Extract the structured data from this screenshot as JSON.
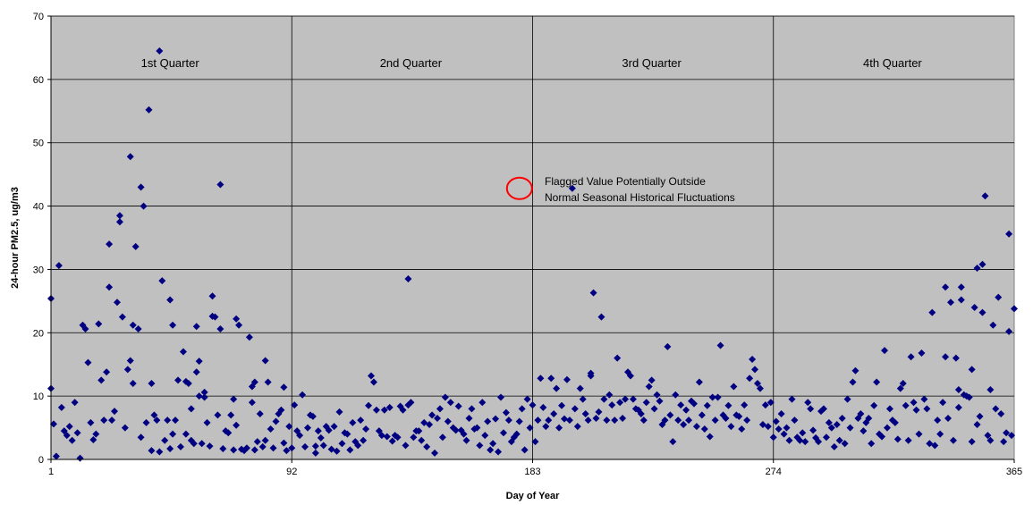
{
  "chart_data": {
    "type": "scatter",
    "title": "",
    "xlabel": "Day of Year",
    "ylabel": "24-hour PM2.5, ug/m3",
    "xlim": [
      1,
      365
    ],
    "ylim": [
      0,
      70
    ],
    "xticks": [
      "1",
      "92",
      "183",
      "274",
      "365"
    ],
    "xtick_values": [
      1,
      92,
      183,
      274,
      365
    ],
    "yticks": [
      "0",
      "10",
      "20",
      "30",
      "40",
      "50",
      "60",
      "70"
    ],
    "ytick_values": [
      0,
      10,
      20,
      30,
      40,
      50,
      60,
      70
    ],
    "grid": true,
    "plot_background": "#c0c0c0",
    "marker_color": "#000080",
    "marker": "diamond",
    "quarters": [
      {
        "label": "1st Quarter",
        "x": 46
      },
      {
        "label": "2nd Quarter",
        "x": 137
      },
      {
        "label": "3rd Quarter",
        "x": 228
      },
      {
        "label": "4th Quarter",
        "x": 319
      }
    ],
    "annotation": {
      "text_line1": "Flagged Value Potentially Outside",
      "text_line2": "Normal Seasonal Historical  Fluctuations",
      "x": 176,
      "y": 42.8,
      "circle_color": "#ff0000"
    },
    "points": [
      [
        1,
        25.4
      ],
      [
        1,
        11.2
      ],
      [
        2,
        5.6
      ],
      [
        3,
        0.5
      ],
      [
        4,
        30.6
      ],
      [
        5,
        8.2
      ],
      [
        6,
        4.5
      ],
      [
        7,
        3.8
      ],
      [
        8,
        5.2
      ],
      [
        9,
        3.0
      ],
      [
        10,
        9.0
      ],
      [
        11,
        4.2
      ],
      [
        12,
        0.2
      ],
      [
        13,
        21.2
      ],
      [
        14,
        20.6
      ],
      [
        15,
        15.3
      ],
      [
        16,
        5.8
      ],
      [
        17,
        3.1
      ],
      [
        18,
        4.0
      ],
      [
        19,
        21.4
      ],
      [
        20,
        12.5
      ],
      [
        21,
        6.2
      ],
      [
        22,
        13.8
      ],
      [
        23,
        27.2
      ],
      [
        23,
        34.0
      ],
      [
        24,
        6.2
      ],
      [
        25,
        7.6
      ],
      [
        26,
        24.8
      ],
      [
        27,
        38.5
      ],
      [
        27,
        37.5
      ],
      [
        28,
        22.5
      ],
      [
        29,
        5.0
      ],
      [
        30,
        14.2
      ],
      [
        31,
        47.8
      ],
      [
        31,
        15.6
      ],
      [
        32,
        21.2
      ],
      [
        32,
        12.0
      ],
      [
        33,
        33.6
      ],
      [
        34,
        20.6
      ],
      [
        35,
        43.0
      ],
      [
        35,
        3.5
      ],
      [
        36,
        40.0
      ],
      [
        37,
        5.8
      ],
      [
        38,
        55.2
      ],
      [
        39,
        1.4
      ],
      [
        39,
        12.0
      ],
      [
        40,
        7.0
      ],
      [
        41,
        6.2
      ],
      [
        42,
        64.5
      ],
      [
        42,
        1.2
      ],
      [
        43,
        28.2
      ],
      [
        44,
        3.0
      ],
      [
        45,
        6.2
      ],
      [
        46,
        25.2
      ],
      [
        46,
        1.7
      ],
      [
        47,
        21.2
      ],
      [
        47,
        4.0
      ],
      [
        48,
        6.2
      ],
      [
        49,
        12.5
      ],
      [
        50,
        2.0
      ],
      [
        51,
        17.0
      ],
      [
        52,
        12.3
      ],
      [
        52,
        4.0
      ],
      [
        53,
        12.0
      ],
      [
        54,
        8.0
      ],
      [
        54,
        3.0
      ],
      [
        55,
        2.5
      ],
      [
        56,
        21.0
      ],
      [
        56,
        13.8
      ],
      [
        57,
        15.5
      ],
      [
        57,
        10.0
      ],
      [
        58,
        2.5
      ],
      [
        59,
        10.6
      ],
      [
        59,
        9.8
      ],
      [
        60,
        5.8
      ],
      [
        61,
        2.1
      ],
      [
        62,
        25.8
      ],
      [
        62,
        22.6
      ],
      [
        63,
        22.5
      ],
      [
        64,
        7.0
      ],
      [
        65,
        20.6
      ],
      [
        65,
        43.4
      ],
      [
        66,
        1.7
      ],
      [
        67,
        4.5
      ],
      [
        68,
        4.2
      ],
      [
        69,
        7.0
      ],
      [
        70,
        9.5
      ],
      [
        70,
        1.5
      ],
      [
        71,
        22.2
      ],
      [
        71,
        5.4
      ],
      [
        72,
        21.2
      ],
      [
        73,
        1.6
      ],
      [
        74,
        1.4
      ],
      [
        75,
        1.8
      ],
      [
        76,
        19.3
      ],
      [
        77,
        9.0
      ],
      [
        77,
        11.5
      ],
      [
        78,
        12.2
      ],
      [
        78,
        1.5
      ],
      [
        79,
        2.8
      ],
      [
        80,
        7.2
      ],
      [
        81,
        2.0
      ],
      [
        82,
        15.6
      ],
      [
        82,
        3.0
      ],
      [
        83,
        12.2
      ],
      [
        84,
        4.8
      ],
      [
        85,
        1.8
      ],
      [
        86,
        6.0
      ],
      [
        87,
        7.2
      ],
      [
        88,
        7.8
      ],
      [
        89,
        2.6
      ],
      [
        89,
        11.4
      ],
      [
        90,
        1.4
      ],
      [
        91,
        5.2
      ],
      [
        92,
        1.8
      ],
      [
        93,
        8.6
      ],
      [
        94,
        4.5
      ],
      [
        95,
        3.8
      ],
      [
        96,
        10.2
      ],
      [
        97,
        2.0
      ],
      [
        98,
        5.0
      ],
      [
        99,
        7.0
      ],
      [
        100,
        6.8
      ],
      [
        101,
        2.1
      ],
      [
        101,
        1.0
      ],
      [
        102,
        4.5
      ],
      [
        103,
        3.4
      ],
      [
        104,
        2.2
      ],
      [
        105,
        5.2
      ],
      [
        106,
        4.6
      ],
      [
        107,
        1.6
      ],
      [
        108,
        5.2
      ],
      [
        109,
        1.3
      ],
      [
        110,
        7.5
      ],
      [
        111,
        2.5
      ],
      [
        112,
        4.2
      ],
      [
        113,
        4.0
      ],
      [
        114,
        1.5
      ],
      [
        115,
        5.8
      ],
      [
        116,
        2.8
      ],
      [
        117,
        2.2
      ],
      [
        118,
        6.2
      ],
      [
        119,
        3.0
      ],
      [
        120,
        4.8
      ],
      [
        121,
        8.5
      ],
      [
        122,
        13.2
      ],
      [
        123,
        12.2
      ],
      [
        124,
        7.8
      ],
      [
        125,
        4.5
      ],
      [
        126,
        3.8
      ],
      [
        127,
        7.8
      ],
      [
        128,
        3.6
      ],
      [
        129,
        8.2
      ],
      [
        130,
        2.9
      ],
      [
        131,
        3.8
      ],
      [
        132,
        3.5
      ],
      [
        133,
        8.4
      ],
      [
        134,
        7.8
      ],
      [
        135,
        2.2
      ],
      [
        136,
        28.5
      ],
      [
        136,
        8.6
      ],
      [
        137,
        9.0
      ],
      [
        138,
        3.5
      ],
      [
        139,
        4.5
      ],
      [
        140,
        4.5
      ],
      [
        141,
        3.0
      ],
      [
        142,
        5.8
      ],
      [
        143,
        2.0
      ],
      [
        144,
        5.5
      ],
      [
        145,
        7.0
      ],
      [
        146,
        1.0
      ],
      [
        147,
        6.5
      ],
      [
        148,
        8.0
      ],
      [
        149,
        3.5
      ],
      [
        150,
        9.8
      ],
      [
        151,
        6.0
      ],
      [
        152,
        9.0
      ],
      [
        153,
        5.0
      ],
      [
        154,
        4.6
      ],
      [
        155,
        8.4
      ],
      [
        156,
        4.6
      ],
      [
        157,
        4.0
      ],
      [
        158,
        3.0
      ],
      [
        159,
        6.5
      ],
      [
        160,
        8.0
      ],
      [
        161,
        4.8
      ],
      [
        162,
        5.0
      ],
      [
        163,
        2.2
      ],
      [
        164,
        9.0
      ],
      [
        165,
        3.8
      ],
      [
        166,
        6.0
      ],
      [
        167,
        1.5
      ],
      [
        168,
        2.5
      ],
      [
        169,
        6.4
      ],
      [
        170,
        1.2
      ],
      [
        171,
        9.8
      ],
      [
        172,
        4.2
      ],
      [
        173,
        7.4
      ],
      [
        174,
        6.2
      ],
      [
        175,
        2.8
      ],
      [
        176,
        3.5
      ],
      [
        177,
        4.0
      ],
      [
        178,
        6.0
      ],
      [
        179,
        8.0
      ],
      [
        180,
        1.5
      ],
      [
        181,
        9.5
      ],
      [
        182,
        5.0
      ],
      [
        183,
        8.6
      ],
      [
        184,
        2.8
      ],
      [
        185,
        6.2
      ],
      [
        186,
        12.8
      ],
      [
        187,
        8.2
      ],
      [
        188,
        5.2
      ],
      [
        189,
        6.2
      ],
      [
        190,
        12.8
      ],
      [
        191,
        7.2
      ],
      [
        192,
        11.2
      ],
      [
        193,
        5.0
      ],
      [
        194,
        8.5
      ],
      [
        195,
        6.4
      ],
      [
        196,
        12.6
      ],
      [
        197,
        6.2
      ],
      [
        198,
        42.8
      ],
      [
        199,
        8.0
      ],
      [
        200,
        5.2
      ],
      [
        201,
        11.2
      ],
      [
        202,
        9.5
      ],
      [
        203,
        7.2
      ],
      [
        204,
        6.2
      ],
      [
        205,
        13.6
      ],
      [
        205,
        13.2
      ],
      [
        206,
        26.3
      ],
      [
        207,
        6.5
      ],
      [
        208,
        7.5
      ],
      [
        209,
        22.5
      ],
      [
        210,
        9.5
      ],
      [
        211,
        6.2
      ],
      [
        212,
        10.2
      ],
      [
        213,
        8.6
      ],
      [
        214,
        6.2
      ],
      [
        215,
        16.0
      ],
      [
        216,
        9.0
      ],
      [
        217,
        6.5
      ],
      [
        218,
        9.5
      ],
      [
        219,
        13.8
      ],
      [
        220,
        13.2
      ],
      [
        221,
        9.5
      ],
      [
        222,
        8.0
      ],
      [
        223,
        7.8
      ],
      [
        224,
        7.2
      ],
      [
        225,
        6.2
      ],
      [
        226,
        9.0
      ],
      [
        227,
        11.5
      ],
      [
        228,
        12.5
      ],
      [
        229,
        8.0
      ],
      [
        230,
        10.2
      ],
      [
        231,
        9.2
      ],
      [
        232,
        5.5
      ],
      [
        233,
        6.2
      ],
      [
        234,
        17.8
      ],
      [
        235,
        7.0
      ],
      [
        236,
        2.8
      ],
      [
        237,
        10.2
      ],
      [
        238,
        6.2
      ],
      [
        239,
        8.6
      ],
      [
        240,
        5.5
      ],
      [
        241,
        7.8
      ],
      [
        242,
        6.2
      ],
      [
        243,
        9.2
      ],
      [
        244,
        8.8
      ],
      [
        245,
        5.2
      ],
      [
        246,
        12.2
      ],
      [
        247,
        7.0
      ],
      [
        248,
        4.8
      ],
      [
        249,
        8.5
      ],
      [
        250,
        3.6
      ],
      [
        251,
        9.8
      ],
      [
        252,
        6.2
      ],
      [
        253,
        9.8
      ],
      [
        254,
        18.0
      ],
      [
        255,
        7.0
      ],
      [
        256,
        6.5
      ],
      [
        257,
        8.5
      ],
      [
        258,
        5.2
      ],
      [
        259,
        11.5
      ],
      [
        260,
        7.0
      ],
      [
        261,
        6.8
      ],
      [
        262,
        4.8
      ],
      [
        263,
        8.6
      ],
      [
        264,
        6.2
      ],
      [
        265,
        12.8
      ],
      [
        266,
        15.8
      ],
      [
        267,
        14.2
      ],
      [
        268,
        12.0
      ],
      [
        269,
        11.2
      ],
      [
        270,
        5.5
      ],
      [
        271,
        8.6
      ],
      [
        272,
        5.2
      ],
      [
        273,
        9.0
      ],
      [
        274,
        3.5
      ],
      [
        275,
        6.0
      ],
      [
        276,
        4.8
      ],
      [
        277,
        7.2
      ],
      [
        278,
        4.0
      ],
      [
        279,
        5.0
      ],
      [
        280,
        3.0
      ],
      [
        281,
        9.5
      ],
      [
        282,
        6.2
      ],
      [
        283,
        3.5
      ],
      [
        284,
        3.0
      ],
      [
        285,
        4.2
      ],
      [
        286,
        2.8
      ],
      [
        287,
        9.0
      ],
      [
        288,
        8.0
      ],
      [
        289,
        4.6
      ],
      [
        290,
        3.4
      ],
      [
        291,
        2.8
      ],
      [
        292,
        7.6
      ],
      [
        293,
        8.0
      ],
      [
        294,
        3.5
      ],
      [
        295,
        5.8
      ],
      [
        296,
        5.0
      ],
      [
        297,
        2.0
      ],
      [
        298,
        5.5
      ],
      [
        299,
        3.0
      ],
      [
        300,
        6.5
      ],
      [
        301,
        2.5
      ],
      [
        302,
        9.5
      ],
      [
        303,
        5.0
      ],
      [
        304,
        12.2
      ],
      [
        305,
        14.0
      ],
      [
        306,
        6.5
      ],
      [
        307,
        7.2
      ],
      [
        308,
        4.5
      ],
      [
        309,
        5.8
      ],
      [
        310,
        6.5
      ],
      [
        311,
        2.5
      ],
      [
        312,
        8.5
      ],
      [
        313,
        12.2
      ],
      [
        314,
        4.0
      ],
      [
        315,
        3.6
      ],
      [
        316,
        17.2
      ],
      [
        317,
        5.0
      ],
      [
        318,
        8.0
      ],
      [
        319,
        6.2
      ],
      [
        320,
        5.8
      ],
      [
        321,
        3.2
      ],
      [
        322,
        11.2
      ],
      [
        323,
        12.0
      ],
      [
        324,
        8.5
      ],
      [
        325,
        3.0
      ],
      [
        326,
        16.2
      ],
      [
        327,
        9.0
      ],
      [
        328,
        7.8
      ],
      [
        329,
        4.0
      ],
      [
        330,
        16.8
      ],
      [
        331,
        9.5
      ],
      [
        332,
        8.0
      ],
      [
        333,
        2.5
      ],
      [
        334,
        23.2
      ],
      [
        335,
        2.2
      ],
      [
        336,
        6.2
      ],
      [
        337,
        4.0
      ],
      [
        338,
        9.0
      ],
      [
        339,
        27.2
      ],
      [
        339,
        16.2
      ],
      [
        340,
        6.5
      ],
      [
        341,
        24.8
      ],
      [
        342,
        3.0
      ],
      [
        343,
        16.0
      ],
      [
        344,
        11.0
      ],
      [
        344,
        8.2
      ],
      [
        345,
        27.2
      ],
      [
        345,
        25.2
      ],
      [
        346,
        10.2
      ],
      [
        347,
        10.0
      ],
      [
        348,
        9.8
      ],
      [
        349,
        14.2
      ],
      [
        349,
        2.8
      ],
      [
        350,
        24.0
      ],
      [
        351,
        30.2
      ],
      [
        351,
        5.5
      ],
      [
        352,
        6.8
      ],
      [
        353,
        23.2
      ],
      [
        353,
        30.8
      ],
      [
        354,
        41.6
      ],
      [
        355,
        3.8
      ],
      [
        356,
        11.0
      ],
      [
        356,
        3.0
      ],
      [
        357,
        21.2
      ],
      [
        358,
        8.0
      ],
      [
        359,
        25.6
      ],
      [
        360,
        7.2
      ],
      [
        361,
        2.8
      ],
      [
        362,
        4.2
      ],
      [
        363,
        35.6
      ],
      [
        363,
        20.2
      ],
      [
        364,
        3.8
      ],
      [
        365,
        23.8
      ]
    ]
  }
}
